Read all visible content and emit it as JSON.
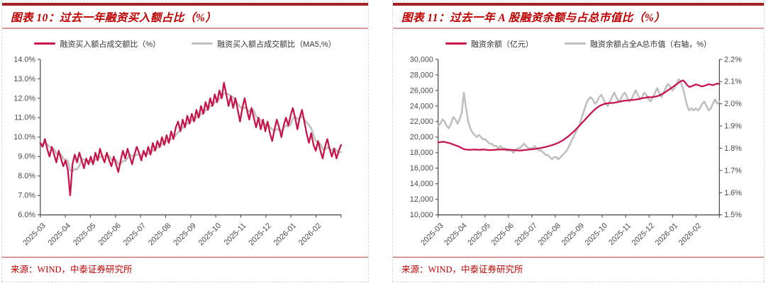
{
  "source": {
    "label": "来源：WIND，中泰证券研究所"
  },
  "styles": {
    "top_bar_red": "#A32126",
    "title_red": "#BF0000",
    "title_underline_rose": "#DC9796",
    "line_red": "#C8124A",
    "line_gray": "#BFBFBF",
    "axis_color": "#3F3F3F",
    "tick_text_color": "#4A4A4A",
    "dashed_border": "#D8D8D8"
  },
  "chart_data": [
    {
      "type": "line",
      "title": "图表 10：过去一年融资买入额占比（%）",
      "x_labels": [
        "2025-03",
        "2025-04",
        "2025-05",
        "2025-06",
        "2025-07",
        "2025-08",
        "2025-09",
        "2025-10",
        "2025-11",
        "2025-12",
        "2026-01",
        "2026-02"
      ],
      "y_axis_left": {
        "min": 6.0,
        "max": 14.0,
        "step": 1.0,
        "format": "percent1"
      },
      "grid": false,
      "legend_position": "top",
      "series": [
        {
          "name": "融资买入额占成交额比（%）",
          "color": "#C8124A",
          "axis": "left",
          "values": [
            9.7,
            9.5,
            9.9,
            9.4,
            9.0,
            9.5,
            9.1,
            8.7,
            9.3,
            8.9,
            8.5,
            8.8,
            8.3,
            7.0,
            8.6,
            9.1,
            8.7,
            9.2,
            8.8,
            8.4,
            8.9,
            8.6,
            9.0,
            8.6,
            9.2,
            8.8,
            9.4,
            9.0,
            8.7,
            9.2,
            8.8,
            8.5,
            9.0,
            8.6,
            8.2,
            8.8,
            9.3,
            8.9,
            9.4,
            9.0,
            8.6,
            9.1,
            9.5,
            9.2,
            8.8,
            9.3,
            9.0,
            9.5,
            9.1,
            9.7,
            9.3,
            9.8,
            9.5,
            10.0,
            9.6,
            10.1,
            9.7,
            10.3,
            9.9,
            10.5,
            10.8,
            10.3,
            10.9,
            10.5,
            11.1,
            10.7,
            11.2,
            10.8,
            11.4,
            11.0,
            11.6,
            11.2,
            11.8,
            11.4,
            12.0,
            11.6,
            12.2,
            11.8,
            12.4,
            12.0,
            12.8,
            12.2,
            11.6,
            12.1,
            11.5,
            12.0,
            11.4,
            10.8,
            11.5,
            12.0,
            11.4,
            10.9,
            11.5,
            11.0,
            10.5,
            11.0,
            10.4,
            10.9,
            10.3,
            10.8,
            10.2,
            9.8,
            10.4,
            10.9,
            10.5,
            10.0,
            10.6,
            11.0,
            10.6,
            11.1,
            11.5,
            11.0,
            10.4,
            11.0,
            11.4,
            10.8,
            10.2,
            9.7,
            10.2,
            9.6,
            9.3,
            9.8,
            9.3,
            8.9,
            9.5,
            9.9,
            9.4,
            9.0,
            9.4,
            8.9,
            9.3,
            9.6
          ]
        },
        {
          "name": "融资买入额占成交额比（MA5,%）",
          "color": "#BFBFBF",
          "axis": "left",
          "ma_of": 0,
          "ma_window": 5
        }
      ]
    },
    {
      "type": "line",
      "title": "图表 11：过去一年 A 股融资余额与占总市值比（%）",
      "x_labels": [
        "2025-03",
        "2025-04",
        "2025-05",
        "2025-06",
        "2025-07",
        "2025-08",
        "2025-09",
        "2025-10",
        "2025-11",
        "2025-12",
        "2026-01",
        "2026-02"
      ],
      "y_axis_left": {
        "min": 10000,
        "max": 30000,
        "step": 2000,
        "format": "thousands"
      },
      "y_axis_right": {
        "min": 1.5,
        "max": 2.2,
        "step": 0.1,
        "format": "percent1"
      },
      "grid": false,
      "legend_position": "top",
      "series": [
        {
          "name": "融资余额（亿元）",
          "color": "#C8124A",
          "axis": "left",
          "values": [
            19300,
            19350,
            19400,
            19380,
            19300,
            19250,
            19150,
            19050,
            18950,
            18850,
            18750,
            18600,
            18450,
            18400,
            18380,
            18360,
            18380,
            18400,
            18380,
            18360,
            18380,
            18400,
            18380,
            18350,
            18330,
            18340,
            18360,
            18380,
            18400,
            18420,
            18400,
            18380,
            18400,
            18380,
            18360,
            18340,
            18320,
            18300,
            18280,
            18300,
            18330,
            18360,
            18390,
            18420,
            18450,
            18480,
            18520,
            18560,
            18610,
            18670,
            18730,
            18800,
            18880,
            18960,
            19050,
            19150,
            19280,
            19420,
            19580,
            19760,
            19960,
            20180,
            20420,
            20680,
            20950,
            21230,
            21520,
            21820,
            22120,
            22420,
            22720,
            23010,
            23290,
            23550,
            23780,
            23970,
            24120,
            24220,
            24300,
            24360,
            24400,
            24380,
            24420,
            24470,
            24530,
            24590,
            24640,
            24690,
            24710,
            24750,
            24790,
            24780,
            24820,
            24870,
            24930,
            24990,
            25040,
            25090,
            25140,
            25110,
            25150,
            25200,
            25260,
            25350,
            25480,
            25640,
            25820,
            26010,
            26200,
            26390,
            26580,
            26780,
            26980,
            27180,
            27300,
            27050,
            26700,
            26450,
            26520,
            26650,
            26780,
            26700,
            26600,
            26520,
            26600,
            26700,
            26800,
            26740,
            26680,
            26780,
            26880,
            26840
          ]
        },
        {
          "name": "融资余额占全A总市值（右轴，%）",
          "color": "#BFBFBF",
          "axis": "right",
          "values": [
            1.9,
            1.91,
            1.93,
            1.92,
            1.9,
            1.89,
            1.91,
            1.94,
            1.93,
            1.91,
            1.93,
            1.96,
            2.05,
            1.98,
            1.92,
            1.89,
            1.87,
            1.86,
            1.85,
            1.86,
            1.85,
            1.84,
            1.84,
            1.83,
            1.82,
            1.82,
            1.81,
            1.81,
            1.8,
            1.81,
            1.8,
            1.8,
            1.79,
            1.79,
            1.79,
            1.78,
            1.79,
            1.8,
            1.8,
            1.81,
            1.82,
            1.81,
            1.8,
            1.8,
            1.8,
            1.81,
            1.8,
            1.79,
            1.79,
            1.78,
            1.77,
            1.77,
            1.76,
            1.75,
            1.76,
            1.76,
            1.75,
            1.76,
            1.77,
            1.78,
            1.79,
            1.81,
            1.83,
            1.85,
            1.87,
            1.89,
            1.91,
            1.94,
            1.97,
            2.0,
            2.02,
            2.03,
            2.02,
            2.0,
            2.01,
            2.03,
            2.04,
            2.02,
            2.0,
            1.99,
            2.01,
            2.03,
            2.05,
            2.03,
            2.01,
            2.02,
            2.04,
            2.05,
            2.03,
            2.01,
            2.02,
            2.04,
            2.06,
            2.04,
            2.02,
            2.03,
            2.05,
            2.04,
            2.02,
            2.01,
            2.03,
            2.05,
            2.07,
            2.05,
            2.03,
            2.05,
            2.07,
            2.09,
            2.08,
            2.06,
            2.07,
            2.09,
            2.11,
            2.1,
            2.07,
            2.03,
            1.99,
            1.97,
            1.98,
            1.97,
            1.98,
            1.97,
            1.98,
            2.0,
            2.01,
            1.99,
            1.97,
            1.98,
            2.0,
            2.02,
            2.0,
            2.01
          ]
        }
      ]
    }
  ]
}
